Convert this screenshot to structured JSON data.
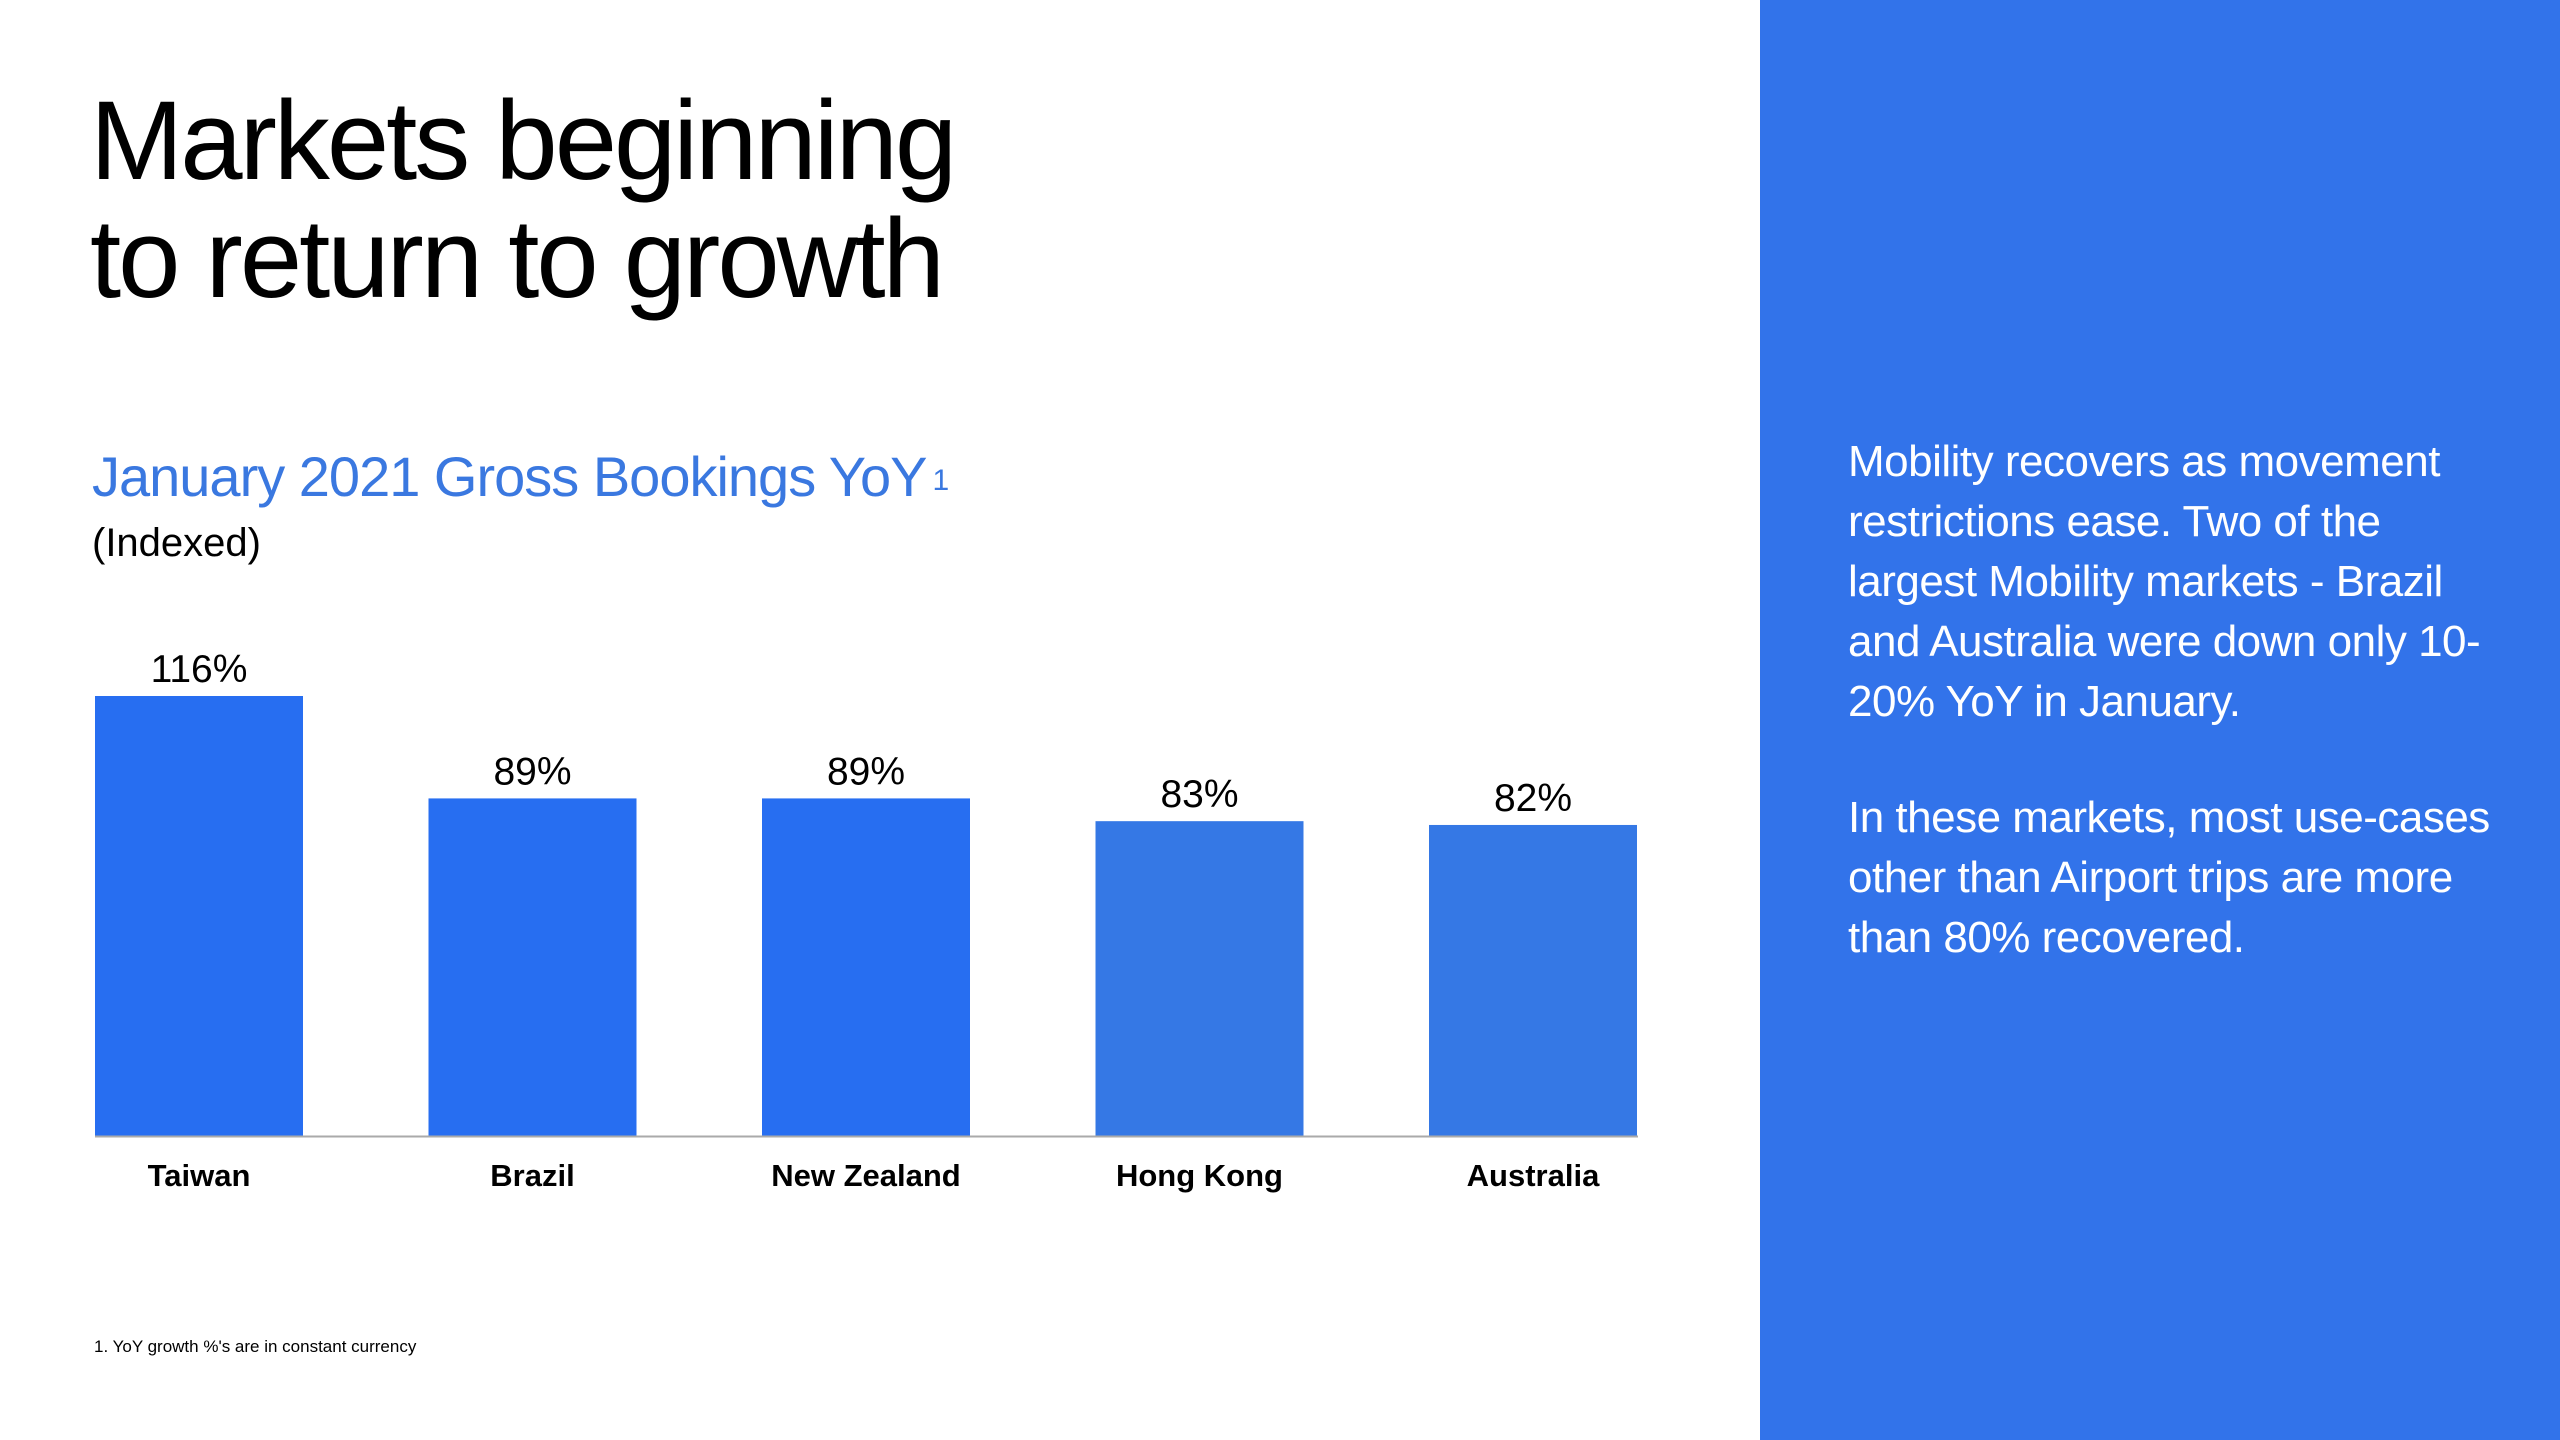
{
  "title": {
    "line1": "Markets beginning",
    "line2": "to return to growth"
  },
  "chart_heading": {
    "text": "January 2021 Gross Bookings YoY",
    "footnote_ref": "1"
  },
  "chart_subtitle": "(Indexed)",
  "chart_data": {
    "type": "bar",
    "title": "January 2021 Gross Bookings YoY",
    "subtitle": "(Indexed)",
    "categories": [
      "Taiwan",
      "Brazil",
      "New Zealand",
      "Hong Kong",
      "Australia"
    ],
    "values": [
      116,
      89,
      89,
      83,
      82
    ],
    "value_labels": [
      "116%",
      "89%",
      "89%",
      "83%",
      "82%"
    ],
    "unit": "%",
    "ylim": [
      0,
      116
    ],
    "grid": false,
    "legend": "none",
    "colors": [
      "#276ef1",
      "#276ef1",
      "#276ef1",
      "#3578e5",
      "#3578e5"
    ],
    "axis_color": "#aaaaaa"
  },
  "footnote": "1.  YoY growth %'s are in constant currency",
  "side_panel": {
    "background": "#3273ea",
    "paragraphs": [
      "Mobility recovers as movement restrictions ease. Two of the largest Mobility markets - Brazil and Australia were down only 10-20% YoY in January.",
      "In these markets, most use-cases other than Airport trips are more than 80% recovered."
    ]
  }
}
